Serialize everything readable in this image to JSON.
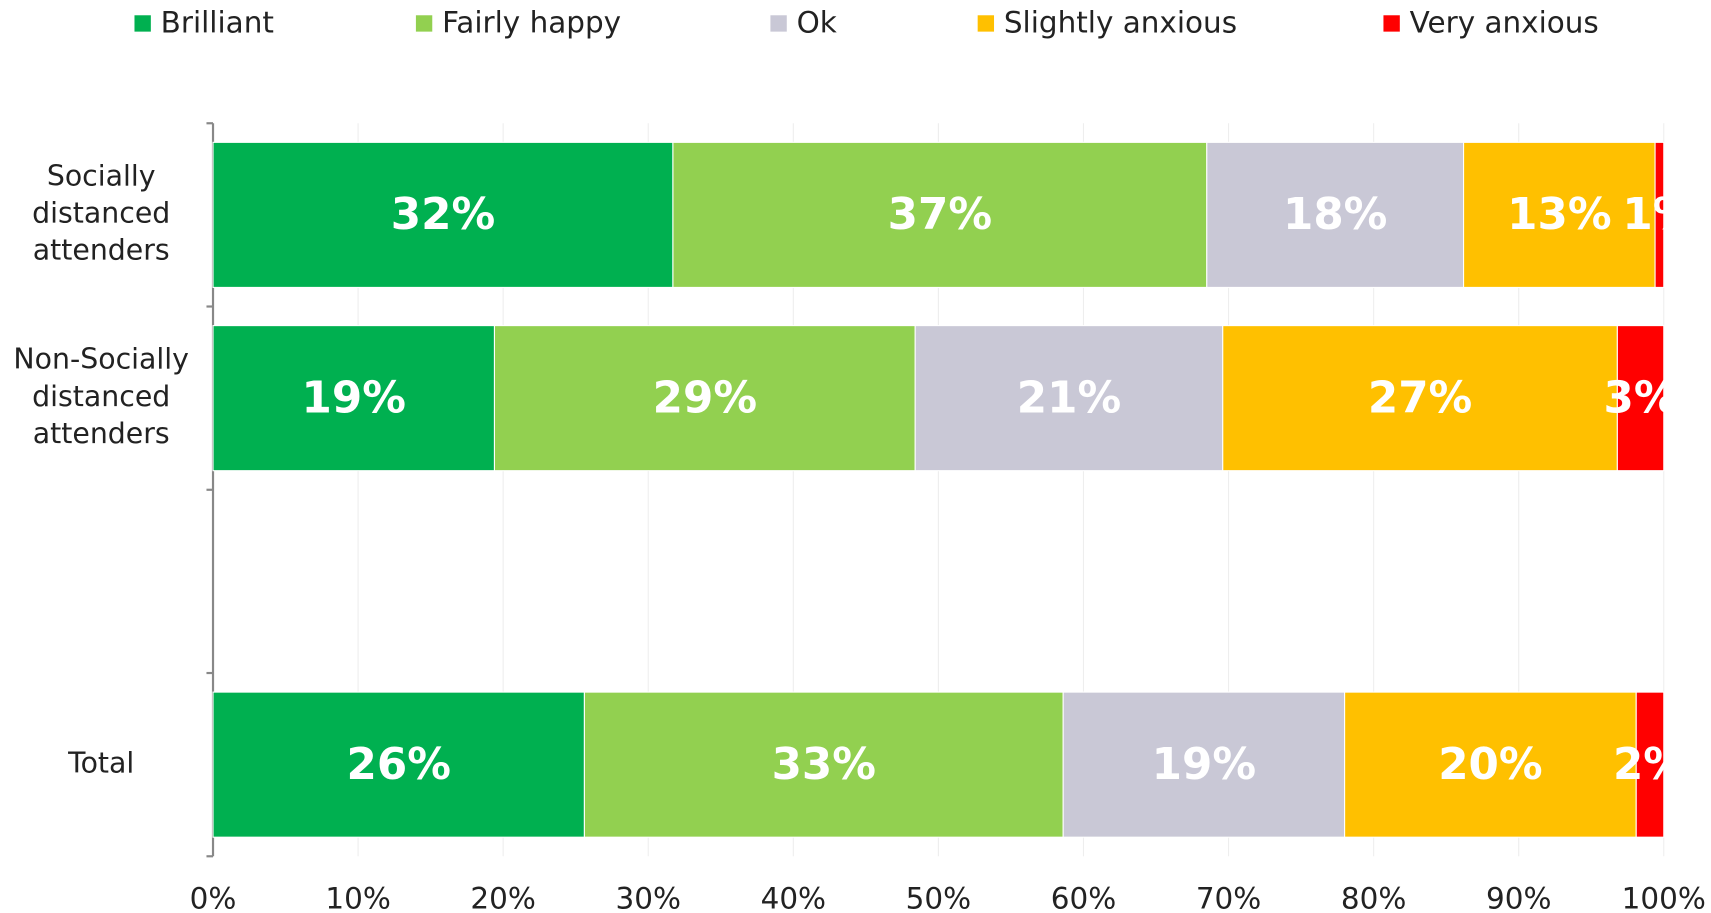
{
  "chart_data": {
    "type": "stacked_bar_horizontal",
    "categories": [
      "Socially distanced attenders",
      "Non-Socially distanced attenders",
      null,
      "Total"
    ],
    "series": [
      {
        "name": "Brilliant",
        "color": "#00b050",
        "values": [
          31.7,
          19.4,
          null,
          25.6
        ],
        "value_labels": [
          "32%",
          "19%",
          null,
          "26%"
        ]
      },
      {
        "name": "Fairly happy",
        "color": "#92d050",
        "values": [
          36.8,
          29.0,
          null,
          33.0
        ],
        "value_labels": [
          "37%",
          "29%",
          null,
          "33%"
        ]
      },
      {
        "name": "Ok",
        "color": "#c9c8d6",
        "values": [
          17.7,
          21.2,
          null,
          19.4
        ],
        "value_labels": [
          "18%",
          "21%",
          null,
          "19%"
        ]
      },
      {
        "name": "Slightly anxious",
        "color": "#ffc000",
        "values": [
          13.2,
          27.2,
          null,
          20.1
        ],
        "value_labels": [
          "13%",
          "27%",
          null,
          "20%"
        ]
      },
      {
        "name": "Very anxious",
        "color": "#ff0000",
        "values": [
          0.6,
          3.2,
          null,
          1.9
        ],
        "value_labels": [
          "1%",
          "3%",
          null,
          "2%"
        ]
      }
    ],
    "xlim": [
      0,
      100
    ],
    "xticks": [
      {
        "value": 0,
        "label": "0%"
      },
      {
        "value": 10,
        "label": "10%"
      },
      {
        "value": 20,
        "label": "20%"
      },
      {
        "value": 30,
        "label": "30%"
      },
      {
        "value": 40,
        "label": "40%"
      },
      {
        "value": 50,
        "label": "50%"
      },
      {
        "value": 60,
        "label": "60%"
      },
      {
        "value": 70,
        "label": "70%"
      },
      {
        "value": 80,
        "label": "80%"
      },
      {
        "value": 90,
        "label": "90%"
      },
      {
        "value": 100,
        "label": "100%"
      }
    ],
    "grid": true,
    "legend": "top"
  }
}
